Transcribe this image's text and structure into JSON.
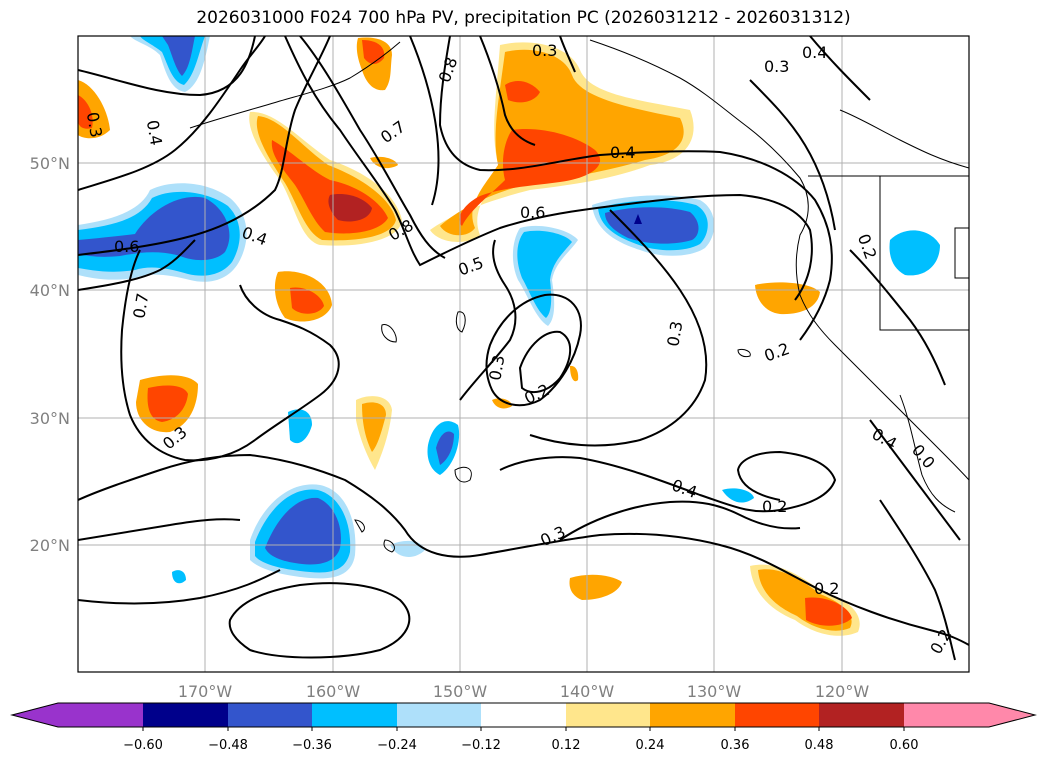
{
  "title": "2026031000 F024 700 hPa PV, precipitation PC (2026031212 - 2026031312)",
  "map": {
    "lon_labels": [
      "170°W",
      "160°W",
      "150°W",
      "140°W",
      "130°W",
      "120°W"
    ],
    "lat_labels": [
      "50°N",
      "40°N",
      "30°N",
      "20°N"
    ],
    "grid": true
  },
  "colorbar": {
    "ticks": [
      "−0.60",
      "−0.48",
      "−0.36",
      "−0.24",
      "−0.12",
      "0.12",
      "0.24",
      "0.36",
      "0.48",
      "0.60"
    ],
    "colors": [
      "#9933cc",
      "#00008b",
      "#3355cc",
      "#00bfff",
      "#aee0fa",
      "#ffffff",
      "#ffe68c",
      "#ffa500",
      "#ff4500",
      "#b22222",
      "#ff88aa"
    ]
  },
  "contour_labels": [
    {
      "text": "0.3"
    },
    {
      "text": "0.4"
    },
    {
      "text": "0.3"
    },
    {
      "text": "0.8"
    },
    {
      "text": "0.3"
    },
    {
      "text": "0.4"
    },
    {
      "text": "0.7"
    },
    {
      "text": "0.4"
    },
    {
      "text": "0.6"
    },
    {
      "text": "0.4"
    },
    {
      "text": "0.8"
    },
    {
      "text": "0.6"
    },
    {
      "text": "0.5"
    },
    {
      "text": "0.7"
    },
    {
      "text": "0.2"
    },
    {
      "text": "0.3"
    },
    {
      "text": "0.3"
    },
    {
      "text": "0.2"
    },
    {
      "text": "0.2"
    },
    {
      "text": "0.3"
    },
    {
      "text": "0.4"
    },
    {
      "text": "0.2"
    },
    {
      "text": "0.4"
    },
    {
      "text": "0.0"
    },
    {
      "text": "0.3"
    },
    {
      "text": "0.2"
    },
    {
      "text": "0.2"
    }
  ]
}
